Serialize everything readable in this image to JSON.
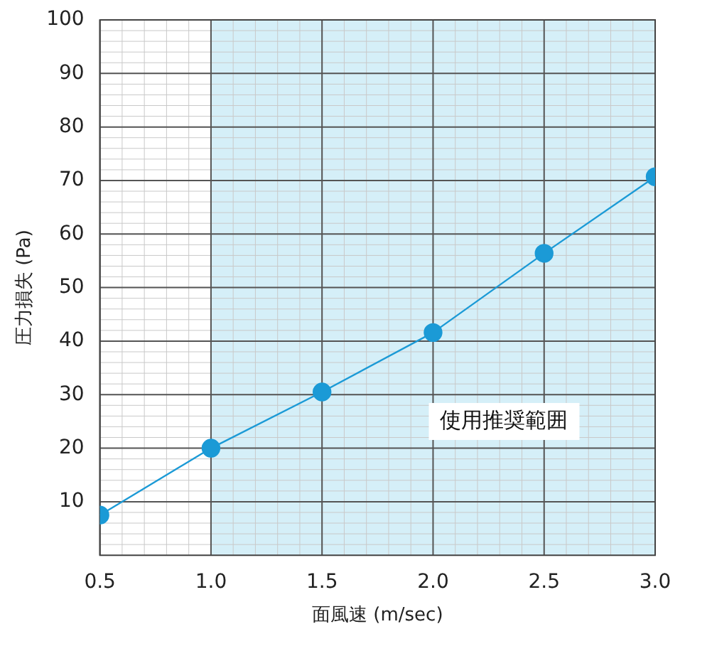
{
  "chart_data": {
    "type": "line",
    "xlabel": "面風速 (m/sec)",
    "ylabel": "圧力損失 (Pa)",
    "x": [
      0.5,
      1.0,
      1.5,
      2.0,
      2.5,
      3.0
    ],
    "series": [
      {
        "color": "#1b9ad6",
        "values": [
          7.5,
          20,
          30.5,
          41.6,
          56.4,
          70.7
        ]
      }
    ],
    "xlim": [
      0.5,
      3.0
    ],
    "xticks": [
      {
        "value": 0.5,
        "label": "0.5"
      },
      {
        "value": 1.0,
        "label": "1.0"
      },
      {
        "value": 1.5,
        "label": "1.5"
      },
      {
        "value": 2.0,
        "label": "2.0"
      },
      {
        "value": 2.5,
        "label": "2.5"
      },
      {
        "value": 3.0,
        "label": "3.0"
      }
    ],
    "ylim": [
      0,
      100
    ],
    "yticks": [
      10,
      20,
      30,
      40,
      50,
      60,
      70,
      80,
      90,
      100
    ],
    "bands": [
      {
        "axis": "x",
        "from": 1.0,
        "to": 3.0,
        "label": "使用推奨範囲",
        "color": "#d5eff8"
      }
    ],
    "grid": true,
    "legend": false,
    "marker": "circle",
    "line_style": "solid"
  }
}
